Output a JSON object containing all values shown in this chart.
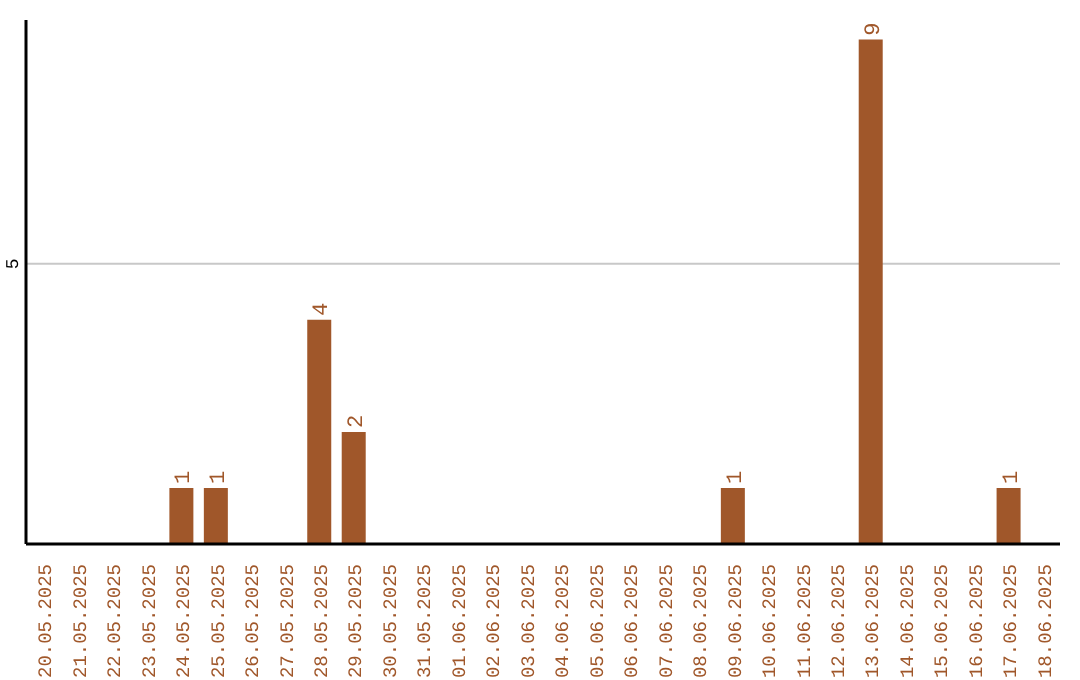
{
  "chart_data": {
    "type": "bar",
    "categories": [
      "20.05.2025",
      "21.05.2025",
      "22.05.2025",
      "23.05.2025",
      "24.05.2025",
      "25.05.2025",
      "26.05.2025",
      "27.05.2025",
      "28.05.2025",
      "29.05.2025",
      "30.05.2025",
      "31.05.2025",
      "01.06.2025",
      "02.06.2025",
      "03.06.2025",
      "04.06.2025",
      "05.06.2025",
      "06.06.2025",
      "07.06.2025",
      "08.06.2025",
      "09.06.2025",
      "10.06.2025",
      "11.06.2025",
      "12.06.2025",
      "13.06.2025",
      "14.06.2025",
      "15.06.2025",
      "16.06.2025",
      "17.06.2025",
      "18.06.2025"
    ],
    "values": [
      0,
      0,
      0,
      0,
      1,
      1,
      0,
      0,
      4,
      2,
      0,
      0,
      0,
      0,
      0,
      0,
      0,
      0,
      0,
      0,
      1,
      0,
      0,
      0,
      9,
      0,
      0,
      0,
      1,
      0
    ],
    "value_labels": [
      null,
      null,
      null,
      null,
      "1",
      "1",
      null,
      null,
      "4",
      "2",
      null,
      null,
      null,
      null,
      null,
      null,
      null,
      null,
      null,
      null,
      "1",
      null,
      null,
      null,
      "9",
      null,
      null,
      null,
      "1",
      null
    ],
    "color": "#a0572a",
    "ylim": [
      0,
      9.35
    ],
    "yticks": [
      {
        "value": 0,
        "label": null
      },
      5
    ],
    "grid": "y"
  }
}
